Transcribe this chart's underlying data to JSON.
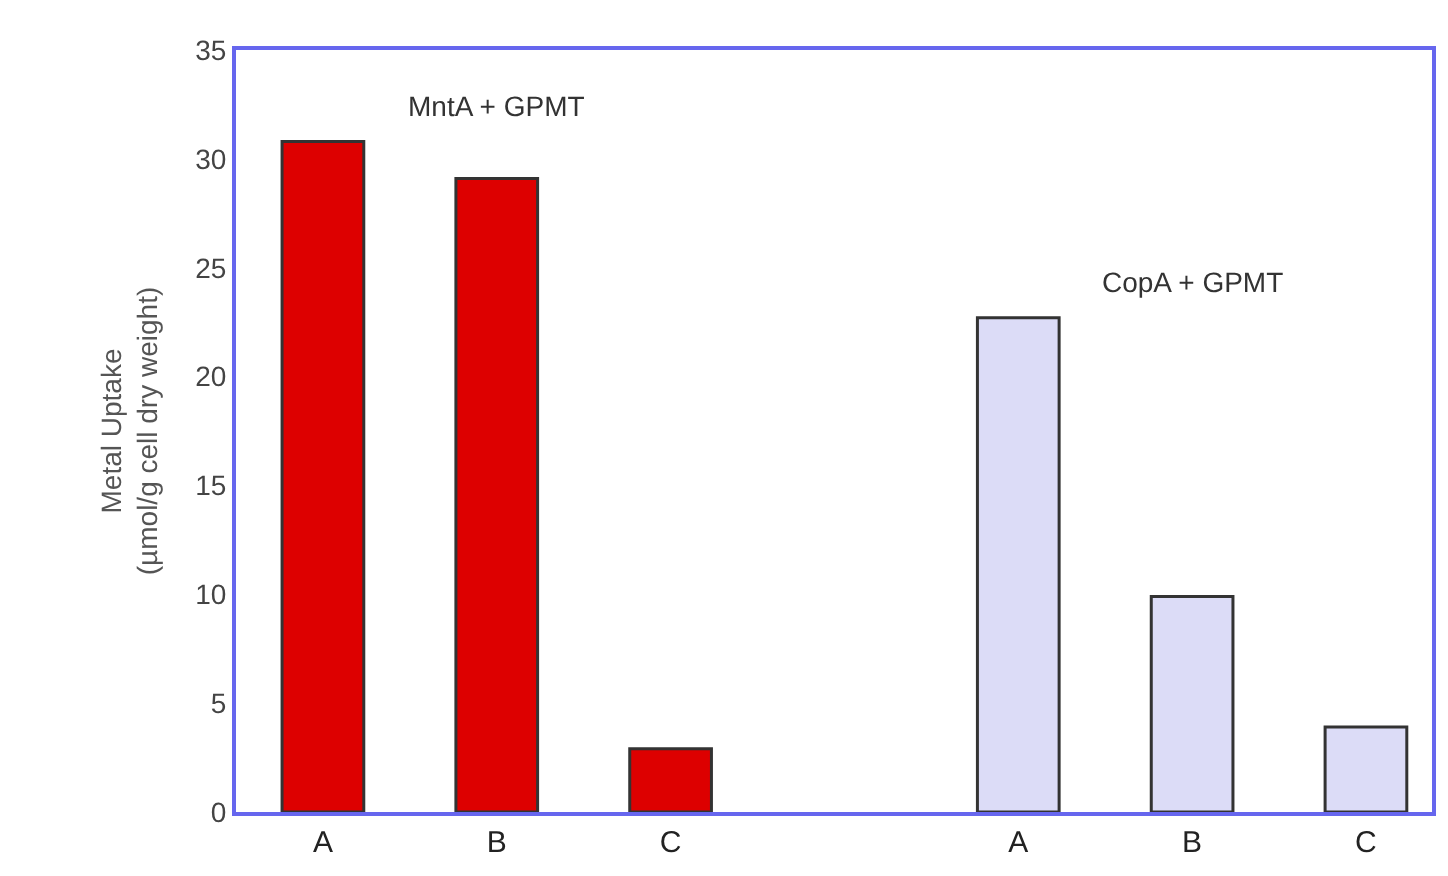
{
  "chart_data": {
    "type": "bar",
    "ylabel": "Metal Uptake\n(µmol/g cell dry weight)",
    "categories": [
      "A",
      "B",
      "C",
      null,
      "A",
      "B",
      "C"
    ],
    "series": [
      {
        "name": "MntA + GPMT",
        "color": "#dd0000",
        "values": [
          30.8,
          29.1,
          2.9,
          null,
          null,
          null,
          null
        ]
      },
      {
        "name": "CopA + GPMT",
        "color": "#dcdcf7",
        "values": [
          null,
          null,
          null,
          null,
          22.7,
          9.9,
          3.9
        ]
      }
    ],
    "ylim": [
      0,
      35
    ],
    "yticks": [
      0,
      5,
      10,
      15,
      20,
      25,
      30,
      35
    ],
    "legend": false
  }
}
